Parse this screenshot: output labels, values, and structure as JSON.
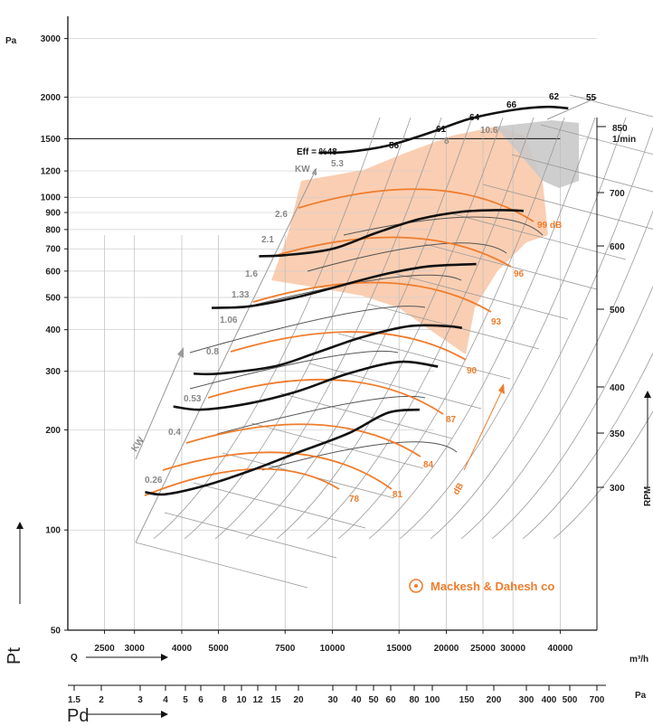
{
  "chart_data": {
    "type": "line",
    "title": "",
    "y_axis": {
      "unit": "Pa",
      "ticks": [
        50,
        100,
        200,
        300,
        400,
        500,
        600,
        700,
        800,
        900,
        1000,
        1200,
        1500,
        2000,
        3000
      ],
      "ylabel": "Pt",
      "scale": "log"
    },
    "x_axis": {
      "label": "Q",
      "unit": "m³/h",
      "ticks": [
        2500,
        3000,
        4000,
        5000,
        7500,
        10000,
        15000,
        20000,
        25000,
        30000,
        40000
      ],
      "scale": "log"
    },
    "pd_axis": {
      "label": "Pd",
      "unit": "Pa",
      "ticks": [
        "1.5",
        "2",
        "3",
        "4",
        "5",
        "6",
        "8",
        "10",
        "12",
        "15",
        "20",
        "30",
        "40",
        "50",
        "60",
        "80",
        "100",
        "150",
        "200",
        "300",
        "400",
        "500",
        "700"
      ]
    },
    "rpm_axis": {
      "label": "RPM",
      "unit_line1": "850",
      "unit_line2": "1/min",
      "ticks": [
        "300",
        "350",
        "400",
        "500",
        "600",
        "700"
      ]
    },
    "efficiency_header": "Eff = %48",
    "efficiency_labels": [
      "56",
      "61",
      "64",
      "66",
      "62",
      "55"
    ],
    "kw_header": "KW",
    "kw_axis_label": "KW",
    "kw_labels": [
      "0.26",
      "0.4",
      "0.53",
      "0.8",
      "1.06",
      "1.33",
      "1.6",
      "2.1",
      "2.6",
      "4",
      "5.3",
      "8",
      "10.6"
    ],
    "db_labels": [
      "78",
      "81",
      "84",
      "87",
      "90",
      "93",
      "96",
      "99 dB"
    ],
    "db_axis_label": "dB",
    "series": [
      {
        "rpm": 300,
        "points": [
          [
            3200,
            130
          ],
          [
            3600,
            128
          ],
          [
            4500,
            135
          ],
          [
            6000,
            150
          ],
          [
            8000,
            170
          ],
          [
            11000,
            195
          ],
          [
            14000,
            225
          ],
          [
            17000,
            230
          ]
        ]
      },
      {
        "rpm": 350,
        "points": [
          [
            3800,
            235
          ],
          [
            4500,
            230
          ],
          [
            6000,
            240
          ],
          [
            8000,
            260
          ],
          [
            11000,
            295
          ],
          [
            15000,
            320
          ],
          [
            19000,
            310
          ]
        ]
      },
      {
        "rpm": 400,
        "points": [
          [
            4300,
            295
          ],
          [
            5000,
            295
          ],
          [
            7000,
            310
          ],
          [
            9000,
            340
          ],
          [
            12000,
            380
          ],
          [
            16000,
            410
          ],
          [
            20000,
            410
          ],
          [
            22000,
            405
          ]
        ]
      },
      {
        "rpm": 500,
        "points": [
          [
            4800,
            465
          ],
          [
            6000,
            470
          ],
          [
            8000,
            500
          ],
          [
            11000,
            550
          ],
          [
            14000,
            590
          ],
          [
            18000,
            620
          ],
          [
            24000,
            630
          ]
        ]
      },
      {
        "rpm": 600,
        "points": [
          [
            6400,
            665
          ],
          [
            7500,
            670
          ],
          [
            10000,
            700
          ],
          [
            13000,
            780
          ],
          [
            17000,
            860
          ],
          [
            22000,
            905
          ],
          [
            28000,
            915
          ],
          [
            32000,
            910
          ]
        ]
      },
      {
        "rpm": 850,
        "points": [
          [
            9200,
            1360
          ],
          [
            11000,
            1370
          ],
          [
            14000,
            1430
          ],
          [
            18000,
            1560
          ],
          [
            23000,
            1720
          ],
          [
            30000,
            1830
          ],
          [
            37000,
            1870
          ],
          [
            42000,
            1850
          ]
        ]
      }
    ]
  },
  "brand": {
    "icon": "fan-logo-icon",
    "name": "Mackesh & Dahesh co",
    "color": "#ef7d2d"
  },
  "colors": {
    "orange": "#ef7d2d",
    "orange_fill": "#f9c6a5",
    "gray_fill": "#c9c9c9",
    "black": "#111111",
    "gray_line": "#9a9a9a"
  }
}
